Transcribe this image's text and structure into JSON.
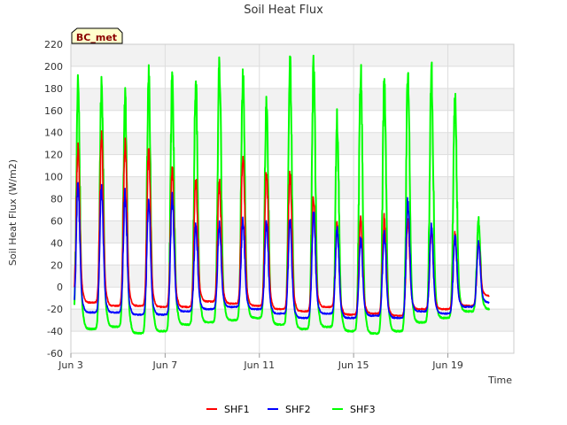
{
  "chart_data": {
    "type": "line",
    "title": "Soil Heat Flux",
    "xlabel": "Time",
    "ylabel": "Soil Heat Flux (W/m2)",
    "ylim": [
      -60,
      220
    ],
    "yticks": [
      -60,
      -40,
      -20,
      0,
      20,
      40,
      60,
      80,
      100,
      120,
      140,
      160,
      180,
      200,
      220
    ],
    "xlim": [
      3,
      21.8
    ],
    "xticks": [
      {
        "day": 3,
        "label": "Jun 3"
      },
      {
        "day": 7,
        "label": "Jun 7"
      },
      {
        "day": 11,
        "label": "Jun 11"
      },
      {
        "day": 15,
        "label": "Jun 15"
      },
      {
        "day": 19,
        "label": "Jun 19"
      }
    ],
    "site_label": "BC_met",
    "days": [
      3.3,
      4.3,
      5.3,
      6.3,
      7.3,
      8.3,
      9.3,
      10.3,
      11.3,
      12.3,
      13.3,
      14.3,
      15.3,
      16.3,
      17.3,
      18.3,
      19.3,
      20.3
    ],
    "series": [
      {
        "name": "SHF1",
        "color": "#ff0000",
        "peaks": [
          127,
          134,
          131,
          123,
          104,
          97,
          94,
          120,
          104,
          103,
          82,
          55,
          62,
          63,
          60,
          52,
          47,
          40
        ],
        "mins": [
          -14,
          -17,
          -17,
          -18,
          -18,
          -13,
          -15,
          -17,
          -20,
          -22,
          -18,
          -25,
          -24,
          -26,
          -20,
          -20,
          -17,
          -8
        ]
      },
      {
        "name": "SHF2",
        "color": "#0000ff",
        "peaks": [
          91,
          89,
          85,
          77,
          82,
          55,
          56,
          60,
          60,
          60,
          67,
          52,
          44,
          48,
          78,
          56,
          47,
          39
        ],
        "mins": [
          -23,
          -23,
          -25,
          -25,
          -22,
          -20,
          -18,
          -20,
          -24,
          -28,
          -24,
          -28,
          -26,
          -28,
          -22,
          -24,
          -18,
          -14
        ]
      },
      {
        "name": "SHF3",
        "color": "#00ff00",
        "peaks": [
          180,
          181,
          171,
          190,
          188,
          185,
          201,
          193,
          169,
          200,
          200,
          151,
          196,
          183,
          198,
          195,
          172,
          60
        ],
        "mins": [
          -38,
          -36,
          -42,
          -40,
          -34,
          -32,
          -30,
          -28,
          -34,
          -38,
          -36,
          -40,
          -42,
          -40,
          -32,
          -28,
          -22,
          -20
        ]
      }
    ]
  }
}
